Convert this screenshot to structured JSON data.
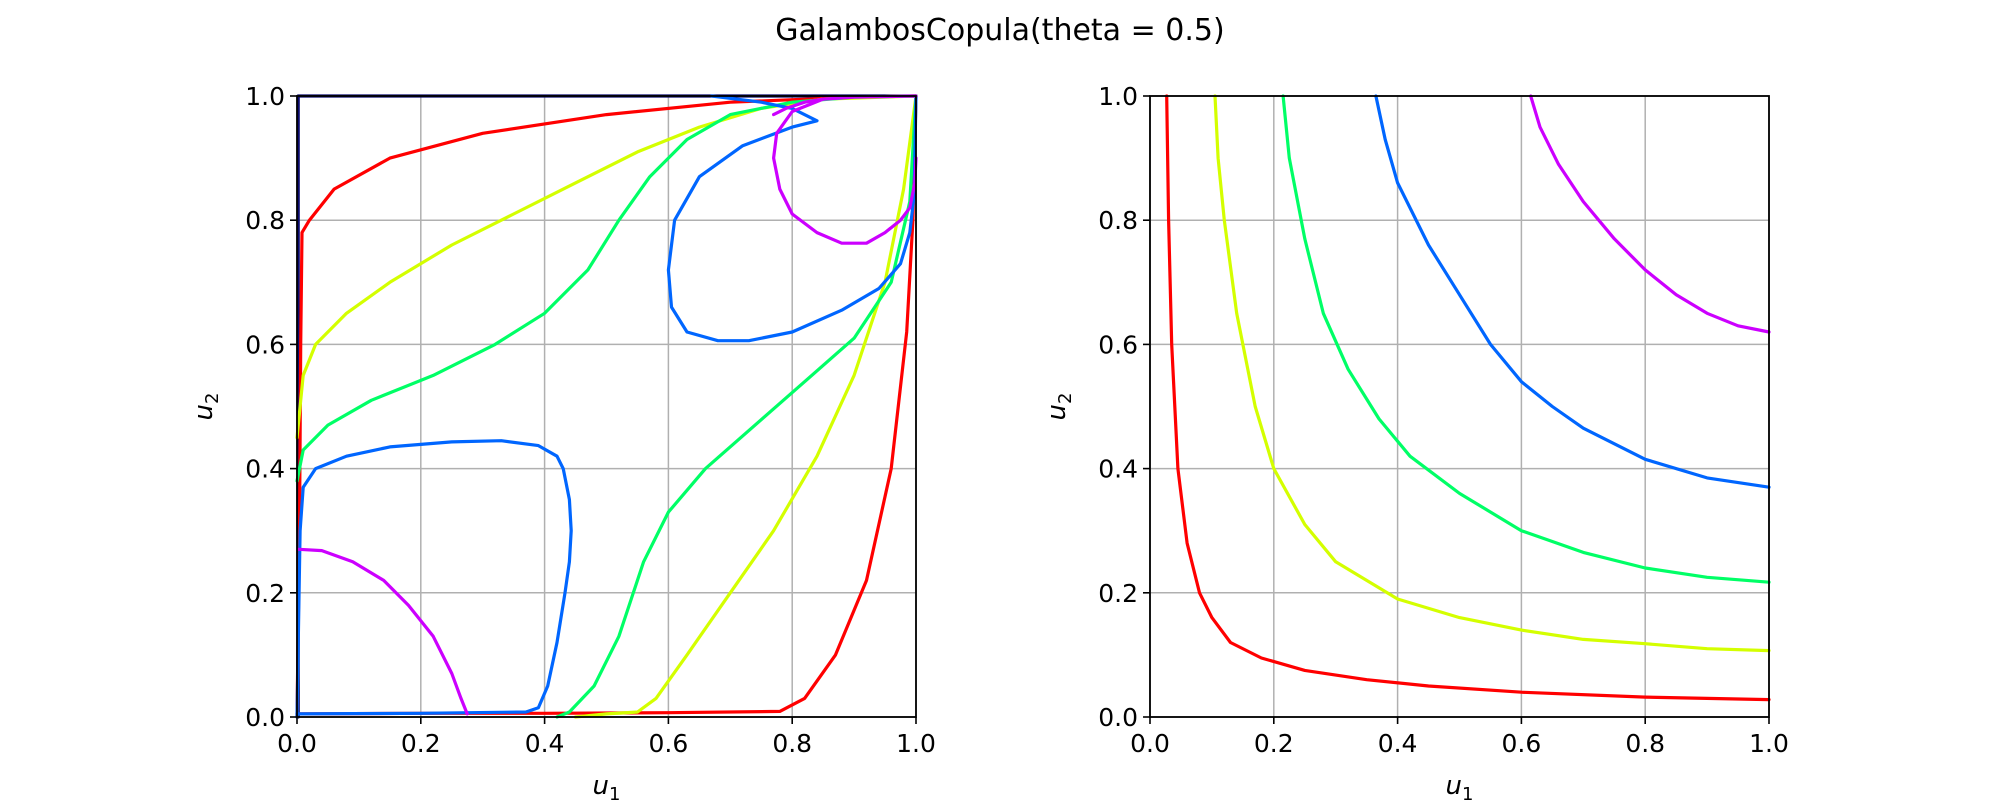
{
  "figure": {
    "title": "GalambosCopula(theta = 0.5)"
  },
  "chart_data": [
    {
      "type": "line",
      "subtype": "contour",
      "panel": "left",
      "xlabel": "u",
      "xlabel_sub": "1",
      "ylabel": "u",
      "ylabel_sub": "2",
      "xlim": [
        0,
        1
      ],
      "ylim": [
        0,
        1
      ],
      "xticks": [
        "0.0",
        "0.2",
        "0.4",
        "0.6",
        "0.8",
        "1.0"
      ],
      "yticks": [
        "0.0",
        "0.2",
        "0.4",
        "0.6",
        "0.8",
        "1.0"
      ],
      "grid": true,
      "series": [
        {
          "color": "#0a0a6e",
          "points": [
            [
              0.002,
              0.0
            ],
            [
              0.002,
              1.0
            ],
            [
              1.0,
              1.0
            ]
          ]
        },
        {
          "color": "#ff0000",
          "points": [
            [
              0.0,
              0.0
            ],
            [
              0.004,
              0.3
            ],
            [
              0.006,
              0.6
            ],
            [
              0.008,
              0.78
            ],
            [
              0.02,
              0.8
            ],
            [
              0.06,
              0.85
            ],
            [
              0.15,
              0.9
            ],
            [
              0.3,
              0.94
            ],
            [
              0.5,
              0.97
            ],
            [
              0.7,
              0.99
            ],
            [
              0.9,
              0.998
            ],
            [
              1.0,
              1.0
            ]
          ]
        },
        {
          "color": "#ff0000",
          "points": [
            [
              0.0,
              0.005
            ],
            [
              0.2,
              0.006
            ],
            [
              0.4,
              0.006
            ],
            [
              0.6,
              0.007
            ],
            [
              0.78,
              0.009
            ],
            [
              0.82,
              0.03
            ],
            [
              0.87,
              0.1
            ],
            [
              0.92,
              0.22
            ],
            [
              0.96,
              0.4
            ],
            [
              0.985,
              0.62
            ],
            [
              0.995,
              0.8
            ],
            [
              1.0,
              1.0
            ]
          ]
        },
        {
          "color": "#d4ff00",
          "points": [
            [
              0.0,
              0.45
            ],
            [
              0.01,
              0.55
            ],
            [
              0.03,
              0.6
            ],
            [
              0.08,
              0.65
            ],
            [
              0.15,
              0.7
            ],
            [
              0.25,
              0.76
            ],
            [
              0.35,
              0.81
            ],
            [
              0.45,
              0.86
            ],
            [
              0.55,
              0.91
            ],
            [
              0.65,
              0.95
            ],
            [
              0.75,
              0.98
            ],
            [
              0.85,
              0.995
            ],
            [
              1.0,
              1.0
            ]
          ]
        },
        {
          "color": "#d4ff00",
          "points": [
            [
              0.45,
              0.0
            ],
            [
              0.5,
              0.005
            ],
            [
              0.55,
              0.008
            ],
            [
              0.58,
              0.03
            ],
            [
              0.63,
              0.1
            ],
            [
              0.7,
              0.2
            ],
            [
              0.77,
              0.3
            ],
            [
              0.84,
              0.42
            ],
            [
              0.9,
              0.55
            ],
            [
              0.95,
              0.7
            ],
            [
              0.98,
              0.85
            ],
            [
              1.0,
              1.0
            ]
          ]
        },
        {
          "color": "#00ff66",
          "points": [
            [
              0.0,
              0.38
            ],
            [
              0.01,
              0.43
            ],
            [
              0.05,
              0.47
            ],
            [
              0.12,
              0.51
            ],
            [
              0.22,
              0.55
            ],
            [
              0.32,
              0.6
            ],
            [
              0.4,
              0.65
            ],
            [
              0.47,
              0.72
            ],
            [
              0.52,
              0.8
            ],
            [
              0.57,
              0.87
            ],
            [
              0.63,
              0.93
            ],
            [
              0.7,
              0.97
            ],
            [
              0.8,
              0.99
            ],
            [
              0.9,
              0.998
            ],
            [
              1.0,
              1.0
            ]
          ]
        },
        {
          "color": "#00ff66",
          "points": [
            [
              0.42,
              0.0
            ],
            [
              0.44,
              0.008
            ],
            [
              0.48,
              0.05
            ],
            [
              0.52,
              0.13
            ],
            [
              0.56,
              0.25
            ],
            [
              0.6,
              0.33
            ],
            [
              0.66,
              0.4
            ],
            [
              0.74,
              0.47
            ],
            [
              0.82,
              0.54
            ],
            [
              0.9,
              0.61
            ],
            [
              0.96,
              0.7
            ],
            [
              0.99,
              0.83
            ],
            [
              1.0,
              1.0
            ]
          ]
        },
        {
          "color": "#0066ff",
          "points": [
            [
              0.0,
              0.0
            ],
            [
              0.005,
              0.3
            ],
            [
              0.01,
              0.37
            ],
            [
              0.03,
              0.4
            ],
            [
              0.08,
              0.42
            ],
            [
              0.15,
              0.435
            ],
            [
              0.25,
              0.443
            ],
            [
              0.33,
              0.445
            ],
            [
              0.39,
              0.437
            ],
            [
              0.42,
              0.42
            ],
            [
              0.43,
              0.4
            ],
            [
              0.44,
              0.35
            ],
            [
              0.443,
              0.3
            ],
            [
              0.44,
              0.25
            ],
            [
              0.433,
              0.2
            ],
            [
              0.42,
              0.12
            ],
            [
              0.405,
              0.05
            ],
            [
              0.39,
              0.015
            ],
            [
              0.37,
              0.008
            ],
            [
              0.2,
              0.006
            ],
            [
              0.0,
              0.005
            ]
          ]
        },
        {
          "color": "#0066ff",
          "points": [
            [
              0.67,
              1.0
            ],
            [
              0.75,
              0.99
            ],
            [
              0.8,
              0.98
            ],
            [
              0.84,
              0.96
            ],
            [
              0.8,
              0.95
            ],
            [
              0.72,
              0.92
            ],
            [
              0.65,
              0.87
            ],
            [
              0.61,
              0.8
            ],
            [
              0.6,
              0.72
            ],
            [
              0.605,
              0.66
            ],
            [
              0.63,
              0.62
            ],
            [
              0.68,
              0.606
            ],
            [
              0.73,
              0.606
            ],
            [
              0.8,
              0.62
            ],
            [
              0.88,
              0.655
            ],
            [
              0.94,
              0.69
            ],
            [
              0.975,
              0.73
            ],
            [
              0.99,
              0.78
            ],
            [
              0.997,
              0.84
            ],
            [
              1.0,
              1.0
            ]
          ]
        },
        {
          "color": "#cc00ff",
          "points": [
            [
              0.003,
              0.27
            ],
            [
              0.04,
              0.268
            ],
            [
              0.09,
              0.25
            ],
            [
              0.14,
              0.22
            ],
            [
              0.18,
              0.18
            ],
            [
              0.22,
              0.13
            ],
            [
              0.25,
              0.07
            ],
            [
              0.265,
              0.03
            ],
            [
              0.275,
              0.005
            ]
          ]
        },
        {
          "color": "#cc00ff",
          "points": [
            [
              0.77,
              0.97
            ],
            [
              0.79,
              0.98
            ],
            [
              0.82,
              0.99
            ],
            [
              0.85,
              0.995
            ],
            [
              0.9,
              0.998
            ],
            [
              1.0,
              1.0
            ]
          ]
        },
        {
          "color": "#cc00ff",
          "points": [
            [
              0.85,
              0.995
            ],
            [
              0.8,
              0.975
            ],
            [
              0.775,
              0.94
            ],
            [
              0.77,
              0.9
            ],
            [
              0.78,
              0.85
            ],
            [
              0.8,
              0.81
            ],
            [
              0.84,
              0.78
            ],
            [
              0.88,
              0.763
            ],
            [
              0.92,
              0.763
            ],
            [
              0.95,
              0.78
            ],
            [
              0.975,
              0.8
            ],
            [
              0.99,
              0.82
            ],
            [
              0.998,
              0.86
            ],
            [
              1.0,
              0.9
            ]
          ]
        }
      ]
    },
    {
      "type": "line",
      "subtype": "contour",
      "panel": "right",
      "xlabel": "u",
      "xlabel_sub": "1",
      "ylabel": "u",
      "ylabel_sub": "2",
      "xlim": [
        0,
        1
      ],
      "ylim": [
        0,
        1
      ],
      "xticks": [
        "0.0",
        "0.2",
        "0.4",
        "0.6",
        "0.8",
        "1.0"
      ],
      "yticks": [
        "0.0",
        "0.2",
        "0.4",
        "0.6",
        "0.8",
        "1.0"
      ],
      "grid": true,
      "series": [
        {
          "color": "#ff0000",
          "points": [
            [
              0.027,
              1.0
            ],
            [
              0.03,
              0.8
            ],
            [
              0.035,
              0.6
            ],
            [
              0.045,
              0.4
            ],
            [
              0.06,
              0.28
            ],
            [
              0.08,
              0.2
            ],
            [
              0.1,
              0.16
            ],
            [
              0.13,
              0.12
            ],
            [
              0.18,
              0.095
            ],
            [
              0.25,
              0.075
            ],
            [
              0.35,
              0.06
            ],
            [
              0.45,
              0.05
            ],
            [
              0.6,
              0.04
            ],
            [
              0.8,
              0.032
            ],
            [
              1.0,
              0.028
            ]
          ]
        },
        {
          "color": "#d4ff00",
          "points": [
            [
              0.105,
              1.0
            ],
            [
              0.11,
              0.9
            ],
            [
              0.12,
              0.8
            ],
            [
              0.14,
              0.65
            ],
            [
              0.17,
              0.5
            ],
            [
              0.2,
              0.4
            ],
            [
              0.25,
              0.31
            ],
            [
              0.3,
              0.25
            ],
            [
              0.4,
              0.19
            ],
            [
              0.5,
              0.16
            ],
            [
              0.6,
              0.14
            ],
            [
              0.7,
              0.125
            ],
            [
              0.8,
              0.118
            ],
            [
              0.9,
              0.11
            ],
            [
              1.0,
              0.107
            ]
          ]
        },
        {
          "color": "#00ff66",
          "points": [
            [
              0.215,
              1.0
            ],
            [
              0.225,
              0.9
            ],
            [
              0.25,
              0.77
            ],
            [
              0.28,
              0.65
            ],
            [
              0.32,
              0.56
            ],
            [
              0.37,
              0.48
            ],
            [
              0.42,
              0.42
            ],
            [
              0.5,
              0.36
            ],
            [
              0.6,
              0.3
            ],
            [
              0.7,
              0.265
            ],
            [
              0.8,
              0.24
            ],
            [
              0.9,
              0.225
            ],
            [
              1.0,
              0.217
            ]
          ]
        },
        {
          "color": "#0066ff",
          "points": [
            [
              0.365,
              1.0
            ],
            [
              0.38,
              0.93
            ],
            [
              0.4,
              0.86
            ],
            [
              0.45,
              0.76
            ],
            [
              0.5,
              0.68
            ],
            [
              0.55,
              0.6
            ],
            [
              0.6,
              0.54
            ],
            [
              0.65,
              0.5
            ],
            [
              0.7,
              0.465
            ],
            [
              0.8,
              0.415
            ],
            [
              0.9,
              0.385
            ],
            [
              1.0,
              0.37
            ]
          ]
        },
        {
          "color": "#cc00ff",
          "points": [
            [
              0.615,
              1.0
            ],
            [
              0.63,
              0.95
            ],
            [
              0.66,
              0.89
            ],
            [
              0.7,
              0.83
            ],
            [
              0.75,
              0.77
            ],
            [
              0.8,
              0.72
            ],
            [
              0.85,
              0.68
            ],
            [
              0.9,
              0.65
            ],
            [
              0.95,
              0.63
            ],
            [
              1.0,
              0.62
            ]
          ]
        }
      ]
    }
  ]
}
